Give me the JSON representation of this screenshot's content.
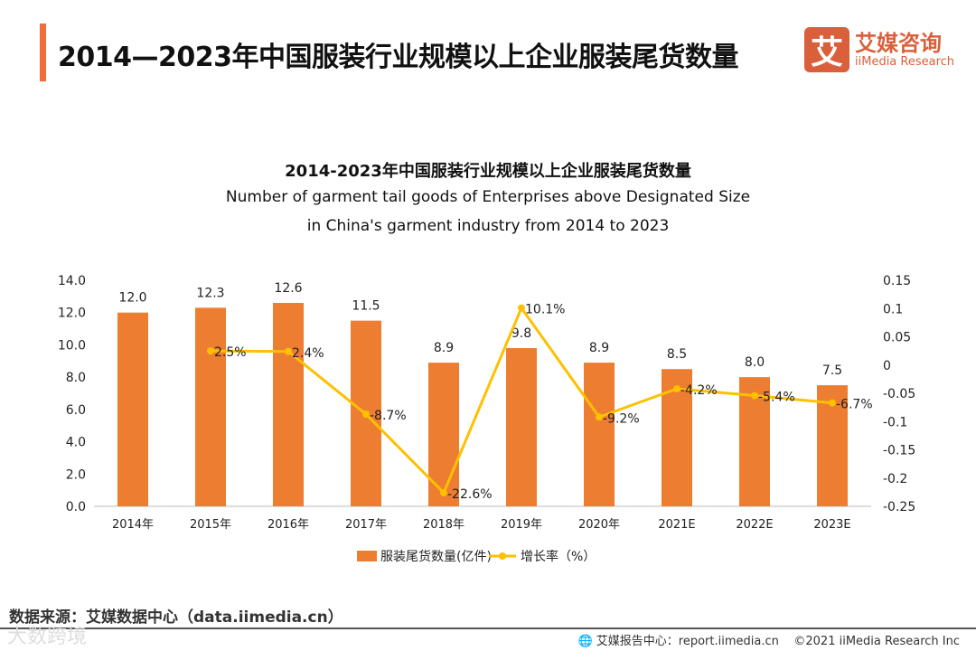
{
  "header": {
    "title": "2014—2023年中国服装行业规模以上企业服装尾货数量",
    "logo_mark": "艾",
    "logo_cn": "艾媒咨询",
    "logo_en": "iiMedia Research"
  },
  "chart_data": {
    "type": "bar+line",
    "title": "2014-2023年中国服装行业规模以上企业服装尾货数量",
    "subtitle_line1": "Number of garment tail goods of Enterprises above Designated Size",
    "subtitle_line2": "in China's garment industry from 2014 to 2023",
    "categories": [
      "2014年",
      "2015年",
      "2016年",
      "2017年",
      "2018年",
      "2019年",
      "2020年",
      "2021E",
      "2022E",
      "2023E"
    ],
    "series": [
      {
        "name": "服装尾货数量(亿件)",
        "type": "bar",
        "axis": "left",
        "color": "#ED7D31",
        "values": [
          12.0,
          12.3,
          12.6,
          11.5,
          8.9,
          9.8,
          8.9,
          8.5,
          8.0,
          7.5
        ],
        "labels": [
          "12.0",
          "12.3",
          "12.6",
          "11.5",
          "8.9",
          "9.8",
          "8.9",
          "8.5",
          "8.0",
          "7.5"
        ]
      },
      {
        "name": "增长率（%）",
        "type": "line",
        "axis": "right",
        "color": "#FFC000",
        "values": [
          null,
          0.025,
          0.024,
          -0.087,
          -0.226,
          0.101,
          -0.092,
          -0.042,
          -0.054,
          -0.067
        ],
        "labels": [
          null,
          "2.5%",
          "2.4%",
          "-8.7%",
          "-22.6%",
          "10.1%",
          "-9.2%",
          "-4.2%",
          "-5.4%",
          "-6.7%"
        ]
      }
    ],
    "ylim_left": [
      0,
      14
    ],
    "yticks_left": [
      "0.0",
      "2.0",
      "4.0",
      "6.0",
      "8.0",
      "10.0",
      "12.0",
      "14.0"
    ],
    "ylim_right": [
      -0.25,
      0.15
    ],
    "yticks_right": [
      "-0.25",
      "-0.2",
      "-0.15",
      "-0.1",
      "-0.05",
      "0",
      "0.05",
      "0.1",
      "0.15"
    ],
    "legend_position": "bottom",
    "grid": false
  },
  "footer": {
    "source": "数据来源：艾媒数据中心（data.iimedia.cn）",
    "report": "艾媒报告中心：report.iimedia.cn",
    "copyright": "©2021  iiMedia Research  Inc",
    "watermark": "大数跨境"
  }
}
